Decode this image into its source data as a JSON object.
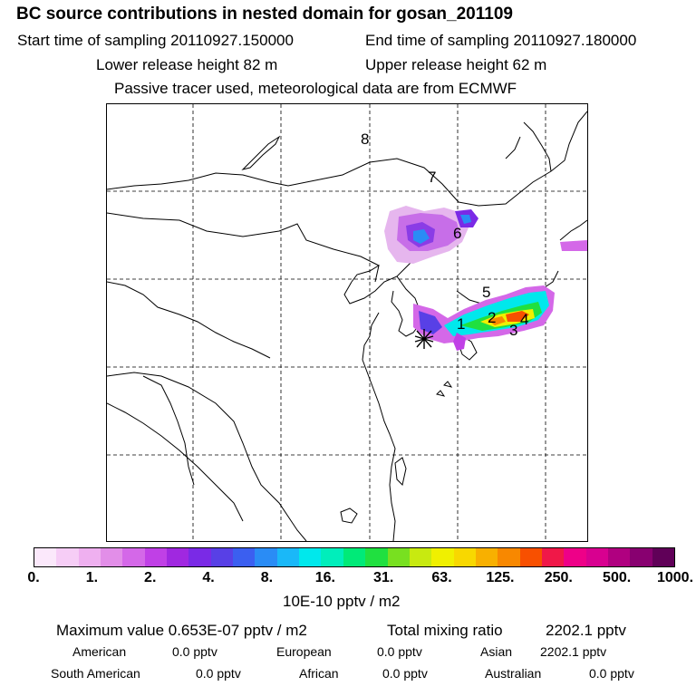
{
  "header": {
    "title": "BC  source contributions in nested domain for gosan_201109",
    "start_time": "Start time of sampling 20110927.150000",
    "end_time": "End time of sampling 20110927.180000",
    "lower_height": "Lower release height   82 m",
    "upper_height": "Upper release height   62 m",
    "note": "Passive tracer used, meteorological data are from ECMWF"
  },
  "map": {
    "region_labels": [
      "1",
      "2",
      "3",
      "4",
      "5",
      "6",
      "7",
      "8"
    ],
    "receptor": "gosan"
  },
  "colorbar": {
    "colors": [
      "#fbe8fb",
      "#f6cdf6",
      "#efb0f0",
      "#e28ee8",
      "#d468e8",
      "#c040e6",
      "#a028e0",
      "#7a2ae6",
      "#5840e6",
      "#3b5ff0",
      "#2a8cf5",
      "#1ab8f8",
      "#00e8ec",
      "#00eebb",
      "#00ea78",
      "#20e040",
      "#78e020",
      "#c8ea10",
      "#f0f000",
      "#f8d800",
      "#f8b000",
      "#f88800",
      "#f85000",
      "#f01848",
      "#ee0088",
      "#d80090",
      "#b00080",
      "#880070",
      "#600058"
    ],
    "ticks": [
      "0.",
      "1.",
      "2.",
      "4.",
      "8.",
      "16.",
      "31.",
      "63.",
      "125.",
      "250.",
      "500.",
      "1000."
    ],
    "unit": "10E-10 pptv / m2"
  },
  "summary": {
    "max_label": "Maximum value  0.653E-07 pptv / m2",
    "total_label": "Total mixing ratio",
    "total_value": "2202.1 pptv"
  },
  "contributions": [
    {
      "region": "American",
      "value": "0.0 pptv"
    },
    {
      "region": "European",
      "value": "0.0 pptv"
    },
    {
      "region": "Asian",
      "value": "2202.1 pptv"
    },
    {
      "region": "South American",
      "value": "0.0 pptv"
    },
    {
      "region": "African",
      "value": "0.0 pptv"
    },
    {
      "region": "Australian",
      "value": "0.0 pptv"
    }
  ]
}
